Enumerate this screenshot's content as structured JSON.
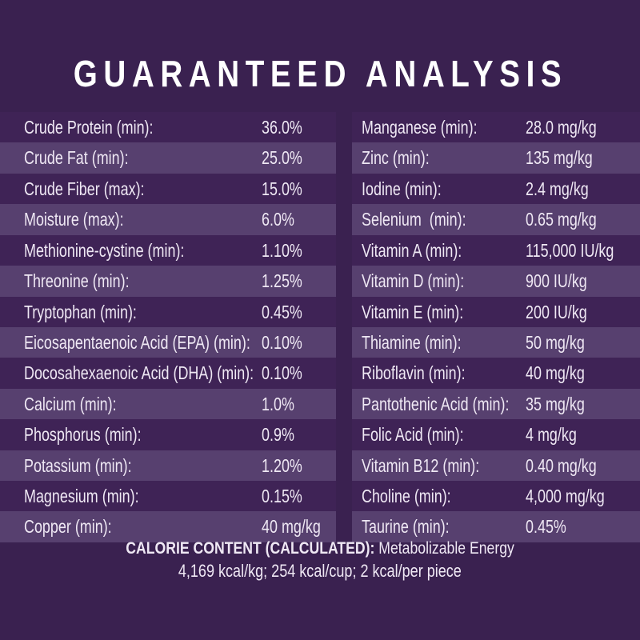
{
  "title": "GUARANTEED ANALYSIS",
  "table": {
    "left_column": [
      {
        "label": "Crude Protein (min):",
        "value": "36.0%"
      },
      {
        "label": "Crude Fat (min):",
        "value": "25.0%"
      },
      {
        "label": "Crude Fiber (max):",
        "value": "15.0%"
      },
      {
        "label": "Moisture (max):",
        "value": "6.0%"
      },
      {
        "label": "Methionine-cystine (min):",
        "value": "1.10%"
      },
      {
        "label": "Threonine (min):",
        "value": "1.25%"
      },
      {
        "label": "Tryptophan (min):",
        "value": "0.45%"
      },
      {
        "label": "Eicosapentaenoic Acid (EPA) (min):",
        "value": "0.10%"
      },
      {
        "label": "Docosahexaenoic Acid (DHA) (min):",
        "value": "0.10%"
      },
      {
        "label": "Calcium (min):",
        "value": "1.0%"
      },
      {
        "label": "Phosphorus (min):",
        "value": "0.9%"
      },
      {
        "label": "Potassium (min):",
        "value": "1.20%"
      },
      {
        "label": "Magnesium (min):",
        "value": "0.15%"
      },
      {
        "label": "Copper (min):",
        "value": "40 mg/kg"
      }
    ],
    "right_column": [
      {
        "label": "Manganese (min):",
        "value": "28.0 mg/kg"
      },
      {
        "label": "Zinc (min):",
        "value": "135 mg/kg"
      },
      {
        "label": "Iodine (min):",
        "value": "2.4 mg/kg"
      },
      {
        "label": "Selenium  (min):",
        "value": "0.65 mg/kg"
      },
      {
        "label": "Vitamin A (min):",
        "value": "115,000 IU/kg"
      },
      {
        "label": "Vitamin D (min):",
        "value": "900 IU/kg"
      },
      {
        "label": "Vitamin E (min):",
        "value": "200 IU/kg"
      },
      {
        "label": "Thiamine (min):",
        "value": "50 mg/kg"
      },
      {
        "label": "Riboflavin (min):",
        "value": "40 mg/kg"
      },
      {
        "label": "Pantothenic Acid (min):",
        "value": "35 mg/kg"
      },
      {
        "label": "Folic Acid (min):",
        "value": "4 mg/kg"
      },
      {
        "label": "Vitamin B12 (min):",
        "value": "0.40 mg/kg"
      },
      {
        "label": "Choline (min):",
        "value": "4,000 mg/kg"
      },
      {
        "label": "Taurine (min):",
        "value": "0.45%"
      }
    ]
  },
  "footer": {
    "calorie_heading": "CALORIE CONTENT (CALCULATED):",
    "calorie_description": " Metabolizable Energy",
    "calorie_values": "4,169 kcal/kg; 254 kcal/cup; 2 kcal/per piece"
  },
  "colors": {
    "background": "#3A2150",
    "row_dark": "#3F2356",
    "row_light": "#57406F",
    "text": "#EFE8F4",
    "title": "#FFFFFF"
  }
}
